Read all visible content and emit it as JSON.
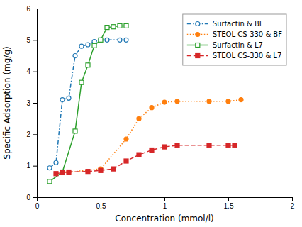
{
  "chart_data": {
    "type": "line",
    "xlabel": "Concentration (mmol/l)",
    "ylabel": "Specific Adsorption (mg/g)",
    "xlim": [
      0,
      2
    ],
    "ylim": [
      0,
      6
    ],
    "xticks": [
      0,
      0.5,
      1,
      1.5,
      2
    ],
    "yticks": [
      0,
      1,
      2,
      3,
      4,
      5,
      6
    ],
    "grid": false,
    "legend": "upper right",
    "series": [
      {
        "name": "Surfactin & BF",
        "marker": "circle-open",
        "line_style": "dashdot",
        "x": [
          0.1,
          0.15,
          0.2,
          0.25,
          0.3,
          0.35,
          0.4,
          0.45,
          0.5,
          0.55,
          0.65,
          0.7
        ],
        "values": [
          0.93,
          1.1,
          3.1,
          3.15,
          4.5,
          4.8,
          4.85,
          4.95,
          5.0,
          5.0,
          5.0,
          5.0
        ]
      },
      {
        "name": "STEOL CS-330 & BF",
        "marker": "circle",
        "line_style": "dotted",
        "x": [
          0.2,
          0.25,
          0.5,
          0.7,
          0.8,
          0.9,
          1.0,
          1.1,
          1.35,
          1.5,
          1.6
        ],
        "values": [
          0.8,
          0.8,
          0.9,
          1.85,
          2.5,
          2.85,
          3.02,
          3.05,
          3.05,
          3.05,
          3.1
        ]
      },
      {
        "name": "Surfactin & L7",
        "marker": "square-open",
        "line_style": "solid",
        "x": [
          0.1,
          0.2,
          0.3,
          0.35,
          0.4,
          0.45,
          0.5,
          0.55,
          0.6,
          0.65,
          0.7
        ],
        "values": [
          0.5,
          0.8,
          2.1,
          3.65,
          4.2,
          4.82,
          5.0,
          5.4,
          5.42,
          5.45,
          5.45
        ]
      },
      {
        "name": "STEOL CS-330 & L7",
        "marker": "square",
        "line_style": "dashed",
        "x": [
          0.15,
          0.2,
          0.25,
          0.4,
          0.5,
          0.6,
          0.7,
          0.8,
          0.9,
          1.0,
          1.1,
          1.35,
          1.5,
          1.55
        ],
        "values": [
          0.75,
          0.78,
          0.8,
          0.82,
          0.85,
          0.9,
          1.15,
          1.35,
          1.5,
          1.6,
          1.65,
          1.65,
          1.65,
          1.65
        ]
      }
    ]
  }
}
